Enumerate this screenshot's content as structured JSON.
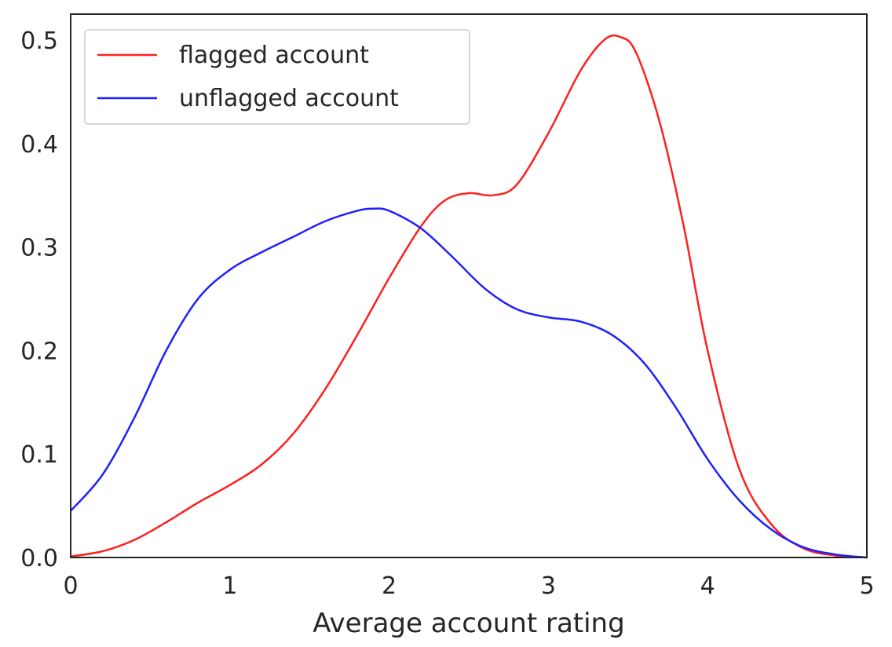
{
  "chart_data": {
    "type": "line",
    "title": "",
    "xlabel": "Average account rating",
    "ylabel": "",
    "xlim": [
      0,
      5
    ],
    "ylim": [
      0,
      0.525
    ],
    "xticks": [
      0,
      1,
      2,
      3,
      4,
      5
    ],
    "yticks": [
      0.0,
      0.1,
      0.2,
      0.3,
      0.4,
      0.5
    ],
    "xtick_labels": [
      "0",
      "1",
      "2",
      "3",
      "4",
      "5"
    ],
    "ytick_labels": [
      "0.0",
      "0.1",
      "0.2",
      "0.3",
      "0.4",
      "0.5"
    ],
    "grid": false,
    "legend_position": "top-left",
    "series": [
      {
        "name": "flagged account",
        "color": "#ff1f1f",
        "x": [
          0.0,
          0.2,
          0.4,
          0.6,
          0.8,
          1.0,
          1.2,
          1.4,
          1.6,
          1.8,
          2.0,
          2.2,
          2.35,
          2.5,
          2.65,
          2.8,
          3.0,
          3.2,
          3.35,
          3.45,
          3.55,
          3.7,
          3.85,
          4.0,
          4.2,
          4.4,
          4.6,
          4.8,
          5.0
        ],
        "y": [
          0.001,
          0.006,
          0.017,
          0.034,
          0.053,
          0.07,
          0.09,
          0.12,
          0.163,
          0.215,
          0.27,
          0.32,
          0.345,
          0.352,
          0.35,
          0.36,
          0.41,
          0.47,
          0.5,
          0.503,
          0.488,
          0.42,
          0.32,
          0.2,
          0.085,
          0.032,
          0.009,
          0.002,
          0.0
        ]
      },
      {
        "name": "unflagged account",
        "color": "#1f1fff",
        "x": [
          0.0,
          0.2,
          0.4,
          0.6,
          0.8,
          1.0,
          1.2,
          1.4,
          1.6,
          1.8,
          1.9,
          2.0,
          2.2,
          2.4,
          2.6,
          2.8,
          3.0,
          3.2,
          3.4,
          3.6,
          3.8,
          4.0,
          4.2,
          4.4,
          4.6,
          4.8,
          5.0
        ],
        "y": [
          0.045,
          0.08,
          0.135,
          0.2,
          0.25,
          0.278,
          0.295,
          0.31,
          0.325,
          0.335,
          0.337,
          0.335,
          0.318,
          0.29,
          0.26,
          0.24,
          0.232,
          0.228,
          0.215,
          0.188,
          0.145,
          0.095,
          0.055,
          0.027,
          0.01,
          0.003,
          0.0
        ]
      }
    ]
  }
}
